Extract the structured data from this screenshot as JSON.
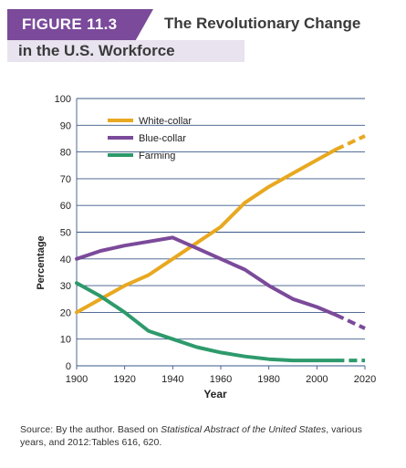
{
  "header": {
    "figure_label": "FIGURE 11.3",
    "title_line1": "The Revolutionary Change",
    "title_line2": "in the U.S. Workforce",
    "badge_color": "#7b4a9a"
  },
  "source": {
    "prefix": "Source: By the author. Based on ",
    "italic": "Statistical Abstract of the United States",
    "suffix": ", various years, and 2012:Tables 616, 620."
  },
  "chart_data": {
    "type": "line",
    "xlabel": "Year",
    "ylabel": "Percentage",
    "xlim": [
      1900,
      2020
    ],
    "ylim": [
      0,
      100
    ],
    "x_ticks": [
      1900,
      1920,
      1940,
      1960,
      1980,
      2000,
      2020
    ],
    "y_ticks": [
      0,
      10,
      20,
      30,
      40,
      50,
      60,
      70,
      80,
      90,
      100
    ],
    "grid": true,
    "legend_position": "top-left",
    "series": [
      {
        "name": "White-collar",
        "color": "#e8a820",
        "x": [
          1900,
          1910,
          1920,
          1930,
          1940,
          1950,
          1960,
          1970,
          1980,
          1990,
          2000,
          2008
        ],
        "y": [
          20,
          25,
          30,
          34,
          40,
          46,
          52,
          61,
          67,
          72,
          77,
          81
        ],
        "projected_x": [
          2008,
          2020
        ],
        "projected_y": [
          81,
          86
        ]
      },
      {
        "name": "Blue-collar",
        "color": "#7b4a9a",
        "x": [
          1900,
          1910,
          1920,
          1930,
          1940,
          1950,
          1960,
          1970,
          1980,
          1990,
          2000,
          2008
        ],
        "y": [
          40,
          43,
          45,
          46.5,
          48,
          44,
          40,
          36,
          30,
          25,
          22,
          19
        ],
        "projected_x": [
          2008,
          2020
        ],
        "projected_y": [
          19,
          14
        ]
      },
      {
        "name": "Farming",
        "color": "#2e9a6c",
        "x": [
          1900,
          1910,
          1920,
          1930,
          1940,
          1950,
          1960,
          1970,
          1980,
          1990,
          2000,
          2008
        ],
        "y": [
          31,
          26,
          20,
          13,
          10,
          7,
          5,
          3.5,
          2.5,
          2,
          2,
          2
        ],
        "projected_x": [
          2008,
          2020
        ],
        "projected_y": [
          2,
          2
        ]
      }
    ]
  }
}
